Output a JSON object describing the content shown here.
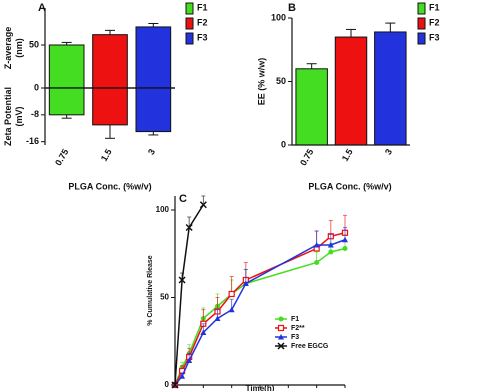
{
  "chart_data": [
    {
      "type": "bar",
      "title": "A",
      "categories": [
        "0.75",
        "1.5",
        "3"
      ],
      "legend": [
        "F1",
        "F2",
        "F3"
      ],
      "colors": [
        "#44dd22",
        "#ee1111",
        "#2233dd"
      ],
      "xlabel": "PLGA Conc. (%w/v)",
      "panels": [
        {
          "ylabel": [
            "Z-average",
            "(nm)"
          ],
          "values": [
            50,
            62,
            71
          ],
          "errors": [
            3,
            5,
            4
          ],
          "ylim": [
            0,
            93
          ],
          "yticks": [
            0,
            50
          ]
        },
        {
          "ylabel": [
            "Zeta Potential",
            "(mV)"
          ],
          "values": [
            -8,
            -11,
            -13
          ],
          "errors": [
            1,
            4,
            1
          ],
          "ylim": [
            -17,
            0
          ],
          "yticks": [
            -16,
            -8
          ]
        }
      ]
    },
    {
      "type": "bar",
      "title": "B",
      "categories": [
        "0.75",
        "1.5",
        "3"
      ],
      "legend": [
        "F1",
        "F2",
        "F3"
      ],
      "colors": [
        "#44dd22",
        "#ee1111",
        "#2233dd"
      ],
      "xlabel": "PLGA Conc. (%w/v)",
      "panels": [
        {
          "ylabel": [
            "EE (% w/w)"
          ],
          "values": [
            60,
            85,
            89
          ],
          "errors": [
            4,
            6,
            7
          ],
          "ylim": [
            0,
            100
          ],
          "yticks": [
            0,
            50,
            100
          ]
        }
      ]
    },
    {
      "type": "line",
      "title": "C",
      "xlabel": "Time(h)",
      "ylabel": "% Cumulative Rlease",
      "xlim": [
        0,
        24
      ],
      "xticks": [
        0,
        4,
        8,
        12,
        16,
        20,
        24
      ],
      "ylim": [
        0,
        108
      ],
      "yticks": [
        0,
        50,
        100
      ],
      "series": [
        {
          "name": "F1",
          "color": "#44dd22",
          "marker": "circle",
          "x": [
            0,
            1,
            2,
            4,
            6,
            8,
            10,
            20,
            22,
            24
          ],
          "values": [
            0,
            10,
            18,
            38,
            45,
            52,
            58,
            70,
            76,
            78
          ],
          "errors": [
            0,
            3,
            5,
            6,
            7,
            8,
            8,
            6,
            5,
            4
          ]
        },
        {
          "name": "F2**",
          "color": "#ee1111",
          "marker": "square",
          "x": [
            0,
            1,
            2,
            4,
            6,
            8,
            10,
            20,
            22,
            24
          ],
          "values": [
            0,
            8,
            16,
            35,
            42,
            52,
            60,
            78,
            85,
            87
          ],
          "errors": [
            0,
            3,
            5,
            8,
            8,
            10,
            10,
            10,
            9,
            10
          ]
        },
        {
          "name": "F3",
          "color": "#2233dd",
          "marker": "triangle",
          "x": [
            0,
            1,
            2,
            4,
            6,
            8,
            10,
            20,
            22,
            24
          ],
          "values": [
            0,
            5,
            14,
            30,
            38,
            43,
            58,
            80,
            80,
            83
          ],
          "errors": [
            0,
            2,
            4,
            5,
            5,
            6,
            8,
            8,
            6,
            7
          ]
        },
        {
          "name": "Free EGCG",
          "color": "#111111",
          "marker": "x",
          "x": [
            0,
            1,
            2,
            4
          ],
          "values": [
            0,
            60,
            90,
            103
          ],
          "errors": [
            0,
            4,
            6,
            5
          ]
        }
      ]
    }
  ]
}
